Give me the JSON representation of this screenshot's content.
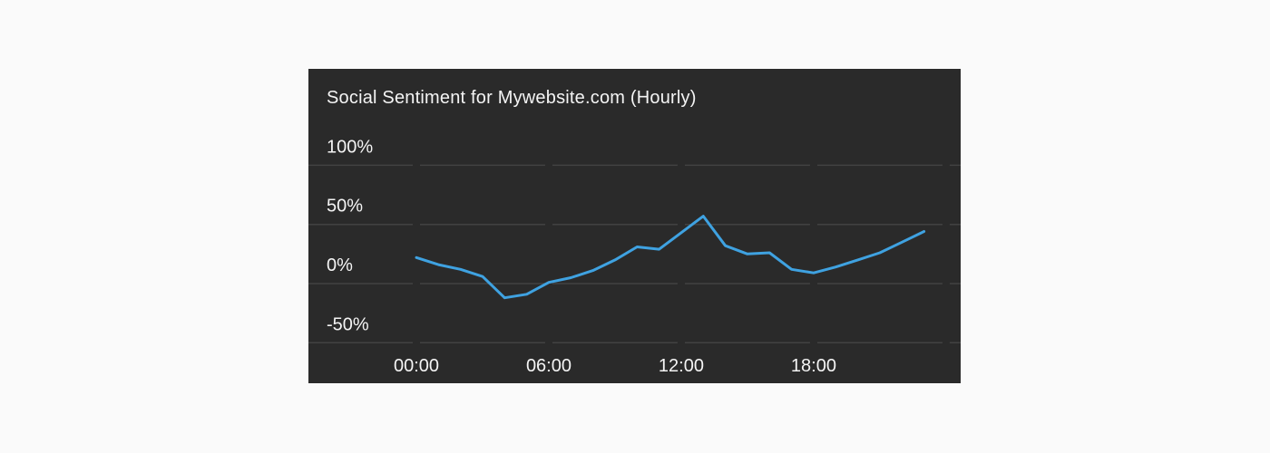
{
  "page": {
    "background_color": "#fafafa"
  },
  "card": {
    "background_color": "#2a2a2a",
    "title": "Social Sentiment for Mywebsite.com (Hourly)"
  },
  "chart_data": {
    "type": "line",
    "title": "Social Sentiment for Mywebsite.com (Hourly)",
    "series_name": "Social Sentiment",
    "unit": "%",
    "x": [
      "00:00",
      "01:00",
      "02:00",
      "03:00",
      "04:00",
      "05:00",
      "06:00",
      "07:00",
      "08:00",
      "09:00",
      "10:00",
      "11:00",
      "12:00",
      "13:00",
      "14:00",
      "15:00",
      "16:00",
      "17:00",
      "18:00",
      "19:00",
      "20:00",
      "21:00",
      "22:00",
      "23:00"
    ],
    "values": [
      22,
      16,
      12,
      6,
      -12,
      -9,
      1,
      5,
      11,
      20,
      31,
      29,
      43,
      57,
      32,
      25,
      26,
      12,
      9,
      14,
      20,
      26,
      35,
      44
    ],
    "y_ticks": [
      {
        "label": "100%",
        "value": 100
      },
      {
        "label": "50%",
        "value": 50
      },
      {
        "label": "0%",
        "value": 0
      },
      {
        "label": "-50%",
        "value": -50
      }
    ],
    "x_ticks": [
      {
        "label": "00:00",
        "hour": 0
      },
      {
        "label": "06:00",
        "hour": 6
      },
      {
        "label": "12:00",
        "hour": 12
      },
      {
        "label": "18:00",
        "hour": 18
      }
    ],
    "grid_gap_hours": [
      0,
      6,
      12,
      18,
      24
    ],
    "ylim": [
      -50,
      100
    ],
    "grid": true,
    "legend_position": "none",
    "line_color": "#3fa2e1",
    "grid_color": "#424242",
    "label_color": "#f4f4f4"
  }
}
